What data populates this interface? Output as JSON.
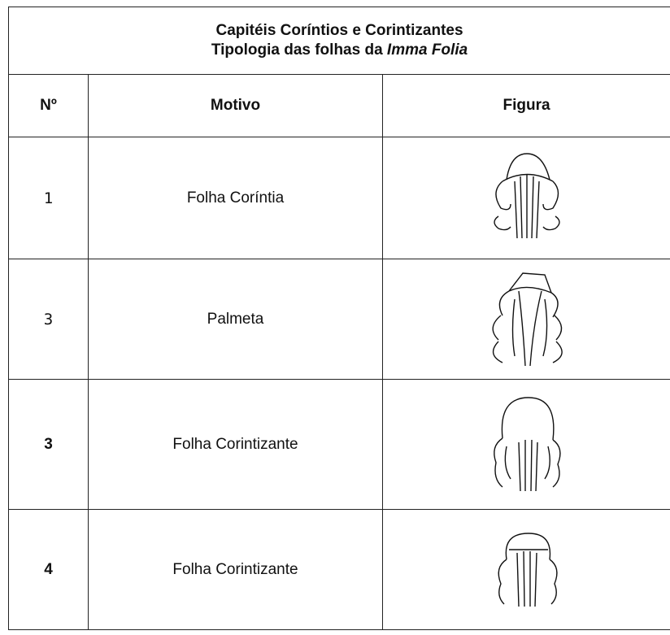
{
  "title": {
    "line1": "Capitéis Coríntios e Corintizantes",
    "line2": "Tipologia das folhas da",
    "line2_emphasis": "Imma Folia"
  },
  "table": {
    "headers": [
      "Nº",
      "Motivo",
      "Figura"
    ],
    "rows": [
      [
        "1",
        "Folha Coríntia"
      ],
      [
        "3",
        "Palmeta"
      ],
      [
        "3",
        "Folha Corintizante"
      ],
      [
        "4",
        "Folha Corintizante"
      ]
    ]
  }
}
